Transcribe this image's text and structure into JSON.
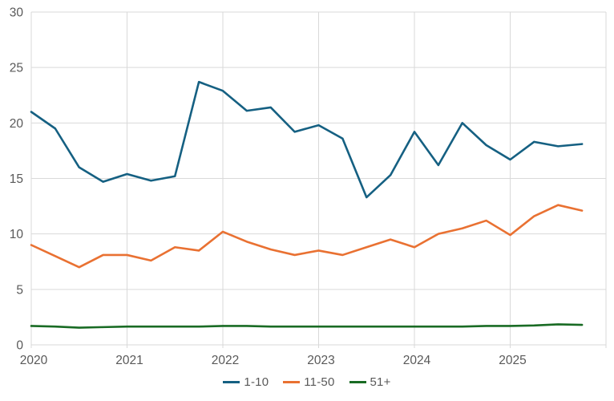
{
  "chart_data": {
    "type": "line",
    "title": "",
    "xlabel": "",
    "ylabel": "",
    "x": [
      "2020Q1",
      "2020Q2",
      "2020Q3",
      "2020Q4",
      "2021Q1",
      "2021Q2",
      "2021Q3",
      "2021Q4",
      "2022Q1",
      "2022Q2",
      "2022Q3",
      "2022Q4",
      "2023Q1",
      "2023Q2",
      "2023Q3",
      "2023Q4",
      "2024Q1",
      "2024Q2",
      "2024Q3",
      "2024Q4",
      "2025Q1",
      "2025Q2",
      "2025Q3",
      "2025Q4"
    ],
    "x_tick_labels": [
      "2020",
      "2021",
      "2022",
      "2023",
      "2024",
      "2025"
    ],
    "y_ticks": [
      0,
      5,
      10,
      15,
      20,
      25,
      30
    ],
    "ylim": [
      0,
      30
    ],
    "grid": true,
    "legend_position": "bottom-center",
    "series": [
      {
        "name": "1-10",
        "color": "#156082",
        "values": [
          21.0,
          19.5,
          16.0,
          14.7,
          15.4,
          14.8,
          15.2,
          23.7,
          22.9,
          21.1,
          21.4,
          19.2,
          19.8,
          18.6,
          13.3,
          15.3,
          19.2,
          16.2,
          20.0,
          18.0,
          16.7,
          18.3,
          17.9,
          18.1
        ]
      },
      {
        "name": "11-50",
        "color": "#E97132",
        "values": [
          9.0,
          8.0,
          7.0,
          8.1,
          8.1,
          7.6,
          8.8,
          8.5,
          10.2,
          9.3,
          8.6,
          8.1,
          8.5,
          8.1,
          8.8,
          9.5,
          8.8,
          10.0,
          10.5,
          11.2,
          9.9,
          11.6,
          12.6,
          12.1
        ]
      },
      {
        "name": "51+",
        "color": "#196B24",
        "values": [
          1.7,
          1.65,
          1.55,
          1.6,
          1.65,
          1.65,
          1.65,
          1.65,
          1.7,
          1.7,
          1.65,
          1.65,
          1.65,
          1.65,
          1.65,
          1.65,
          1.65,
          1.65,
          1.65,
          1.7,
          1.7,
          1.75,
          1.85,
          1.8
        ]
      }
    ],
    "gridline_color": "#D9D9D9",
    "axis_label_color": "#595959"
  }
}
